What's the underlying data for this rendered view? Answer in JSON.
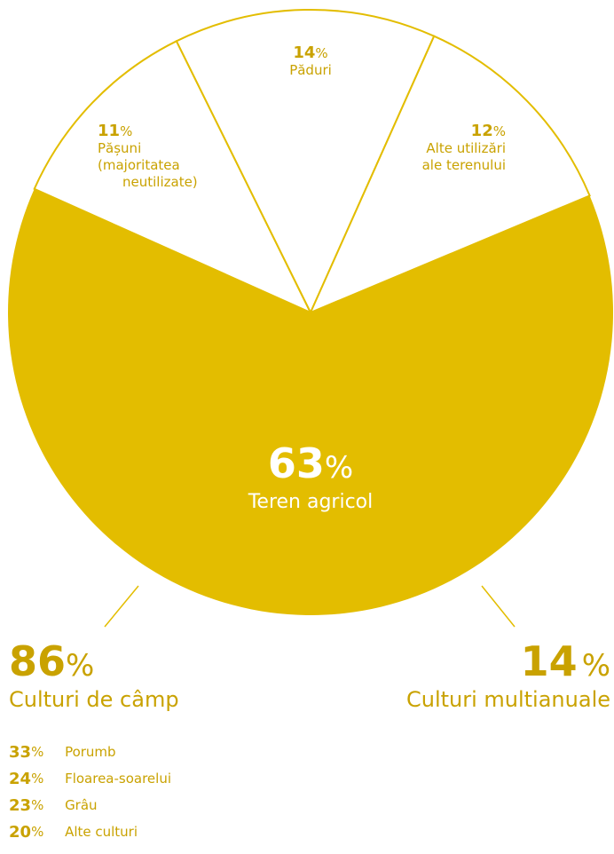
{
  "chart_data": {
    "type": "pie",
    "colors": {
      "primary": "#e3bd00",
      "label": "#c9a200",
      "background": "#ffffff"
    },
    "slices": [
      {
        "label": "Teren agricol",
        "value": 63
      },
      {
        "label": "Pășuni (majoritatea neutilizate)",
        "value": 11
      },
      {
        "label": "Păduri",
        "value": 14
      },
      {
        "label": "Alte utilizări ale terenului",
        "value": 12
      }
    ],
    "labels": {
      "center": {
        "value": "63",
        "unit": "%",
        "name": "Teren agricol"
      },
      "pasuni": {
        "value": "11",
        "unit": "%",
        "line1": "Pășuni",
        "line2": "(majoritatea",
        "line3": "neutilizate)"
      },
      "paduri": {
        "value": "14",
        "unit": "%",
        "line1": "Păduri"
      },
      "alte": {
        "value": "12",
        "unit": "%",
        "line1": "Alte utilizări",
        "line2": "ale terenului"
      }
    },
    "breakdown": [
      {
        "value": "86",
        "unit": "%",
        "label": "Culturi de câmp"
      },
      {
        "value": "14",
        "unit": "%",
        "label": "Culturi multianuale"
      }
    ],
    "field_crops": [
      {
        "value": "33",
        "unit": "%",
        "label": "Porumb"
      },
      {
        "value": "24",
        "unit": "%",
        "label": "Floarea-soarelui"
      },
      {
        "value": "23",
        "unit": "%",
        "label": "Grâu"
      },
      {
        "value": "20",
        "unit": "%",
        "label": "Alte culturi"
      }
    ]
  }
}
